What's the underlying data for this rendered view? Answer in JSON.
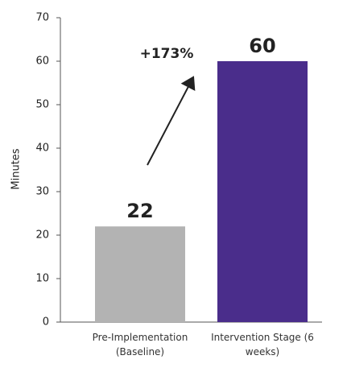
{
  "chart_data": {
    "type": "bar",
    "y_label": "Minutes",
    "annotation": "+173%",
    "categories": [
      "Pre-Implementation (Baseline)",
      "Intervention Stage (6 weeks)"
    ],
    "values": [
      22,
      60
    ],
    "colors": [
      "#b3b3b3",
      "#4a2d8b"
    ],
    "ylim": [
      0,
      70
    ],
    "yticks": [
      0,
      10,
      20,
      30,
      40,
      50,
      60,
      70
    ],
    "grid": false
  }
}
